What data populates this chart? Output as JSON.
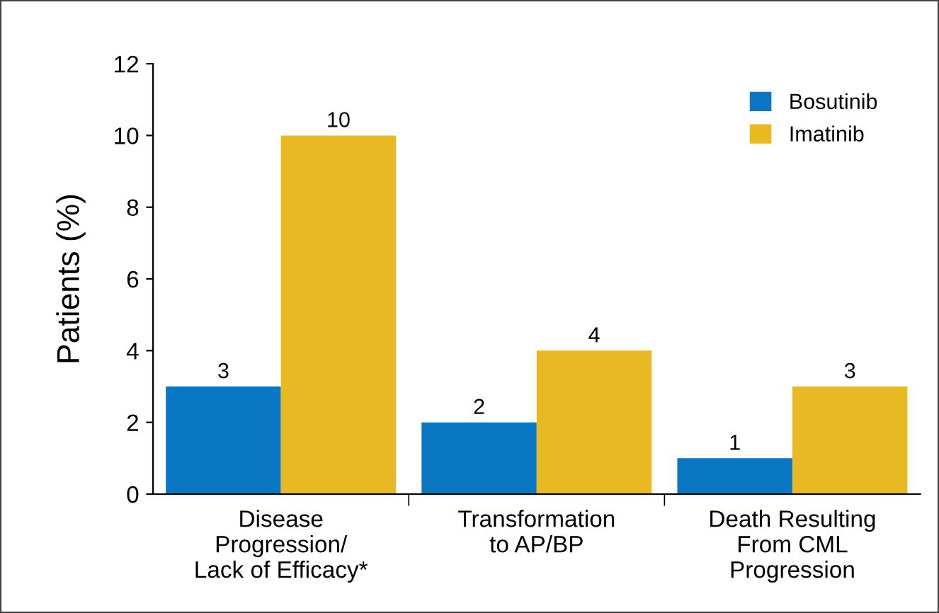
{
  "chart_data": {
    "type": "bar",
    "ylabel": "Patients (%)",
    "categories": [
      "Disease\nProgression/\nLack of Efficacy*",
      "Transformation\nto AP/BP",
      "Death Resulting\nFrom CML\nProgression"
    ],
    "series": [
      {
        "name": "Bosutinib",
        "color": "#0a77c4",
        "values": [
          3,
          2,
          1
        ]
      },
      {
        "name": "Imatinib",
        "color": "#e8b923",
        "values": [
          10,
          4,
          3
        ]
      }
    ],
    "ylim": [
      0,
      12
    ],
    "yticks": [
      0,
      2,
      4,
      6,
      8,
      10,
      12
    ],
    "data_labels": true,
    "legend": "top right",
    "grid": false
  }
}
